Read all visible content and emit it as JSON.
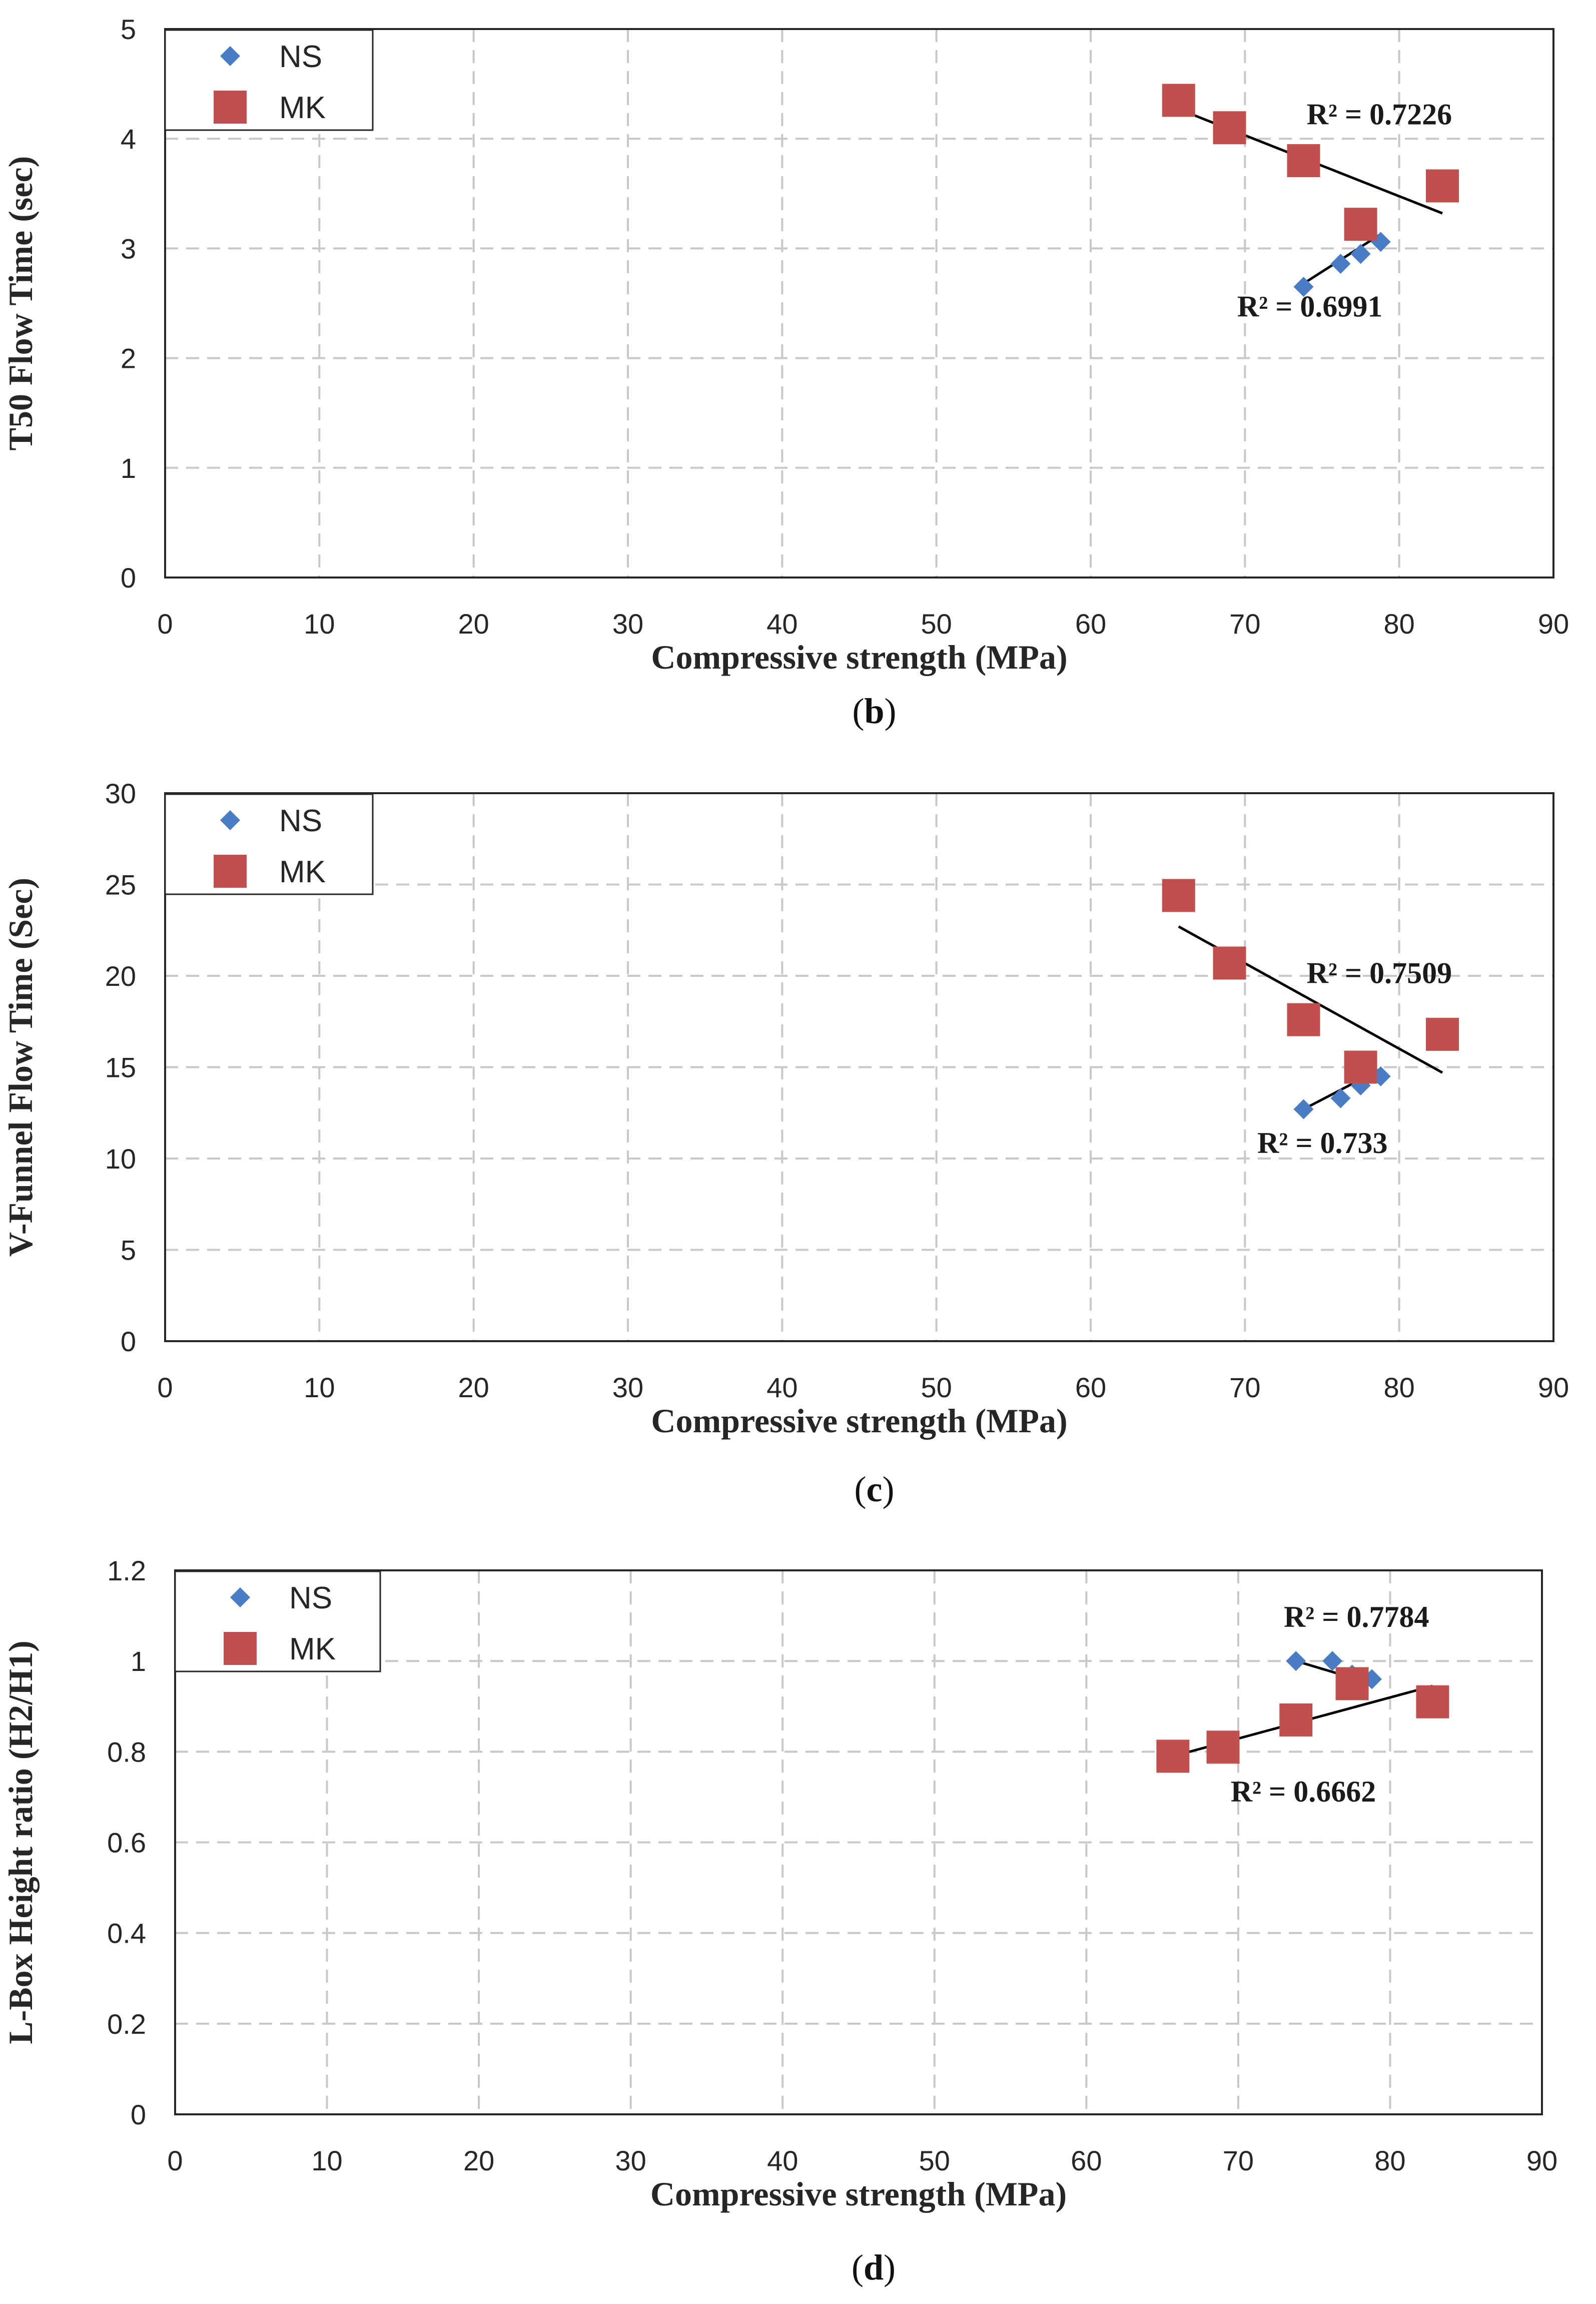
{
  "colors": {
    "ns": "#4a7cc4",
    "mk": "#c0504d",
    "grid": "#c8c8c8",
    "trend": "#000000"
  },
  "chart_data": [
    {
      "type": "scatter",
      "caption": "b",
      "xlabel": "Compressive strength (MPa)",
      "ylabel": "T50 Flow Time (sec)",
      "xlim": [
        0,
        90
      ],
      "ylim": [
        0,
        5
      ],
      "xticks": [
        0,
        10,
        20,
        30,
        40,
        50,
        60,
        70,
        80,
        90
      ],
      "yticks": [
        0,
        1,
        2,
        3,
        4,
        5
      ],
      "grid": true,
      "legend_position": "top-left",
      "series": [
        {
          "name": "NS",
          "marker": "diamond",
          "points": [
            [
              73.8,
              2.65
            ],
            [
              76.2,
              2.86
            ],
            [
              77.5,
              2.95
            ],
            [
              78.8,
              3.06
            ]
          ],
          "trendline": [
            [
              73.8,
              2.68
            ],
            [
              78.8,
              3.13
            ]
          ],
          "r2_label": "R² = 0.6991",
          "r2_at": [
            69.5,
            2.38
          ]
        },
        {
          "name": "MK",
          "marker": "square",
          "points": [
            [
              65.7,
              4.35
            ],
            [
              69.0,
              4.1
            ],
            [
              73.8,
              3.8
            ],
            [
              77.5,
              3.22
            ],
            [
              82.8,
              3.57
            ]
          ],
          "trendline": [
            [
              65.7,
              4.27
            ],
            [
              82.8,
              3.32
            ]
          ],
          "r2_label": "R² = 0.7226",
          "r2_at": [
            74.0,
            4.13
          ]
        }
      ]
    },
    {
      "type": "scatter",
      "caption": "c",
      "xlabel": "Compressive strength (MPa)",
      "ylabel": "V-Funnel Flow Time (Sec)",
      "xlim": [
        0,
        90
      ],
      "ylim": [
        0,
        30
      ],
      "xticks": [
        0,
        10,
        20,
        30,
        40,
        50,
        60,
        70,
        80,
        90
      ],
      "yticks": [
        0,
        5,
        10,
        15,
        20,
        25,
        30
      ],
      "grid": true,
      "legend_position": "top-left",
      "series": [
        {
          "name": "NS",
          "marker": "diamond",
          "points": [
            [
              73.8,
              12.7
            ],
            [
              76.2,
              13.3
            ],
            [
              77.5,
              14.0
            ],
            [
              78.8,
              14.5
            ]
          ],
          "trendline": [
            [
              73.8,
              12.7
            ],
            [
              78.8,
              14.9
            ]
          ],
          "r2_label": "R² = 0.733",
          "r2_at": [
            70.8,
            10.3
          ]
        },
        {
          "name": "MK",
          "marker": "square",
          "points": [
            [
              65.7,
              24.4
            ],
            [
              69.0,
              20.7
            ],
            [
              73.8,
              17.6
            ],
            [
              77.5,
              15.0
            ],
            [
              82.8,
              16.8
            ]
          ],
          "trendline": [
            [
              65.7,
              22.7
            ],
            [
              82.8,
              14.7
            ]
          ],
          "r2_label": "R² = 0.7509",
          "r2_at": [
            74.0,
            19.6
          ]
        }
      ]
    },
    {
      "type": "scatter",
      "caption": "d",
      "xlabel": "Compressive strength (MPa)",
      "ylabel": "L-Box Height ratio (H2/H1)",
      "xlim": [
        0,
        90
      ],
      "ylim": [
        0,
        1.2
      ],
      "xticks": [
        0,
        10,
        20,
        30,
        40,
        50,
        60,
        70,
        80,
        90
      ],
      "yticks": [
        0,
        0.2,
        0.4,
        0.6,
        0.8,
        1,
        1.2
      ],
      "grid": true,
      "legend_position": "top-left",
      "series": [
        {
          "name": "NS",
          "marker": "diamond",
          "points": [
            [
              73.8,
              1.0
            ],
            [
              76.2,
              1.0
            ],
            [
              77.5,
              0.97
            ],
            [
              78.8,
              0.96
            ]
          ],
          "trendline": [
            [
              73.8,
              1.0
            ],
            [
              78.8,
              0.95
            ]
          ],
          "r2_label": "R² = 0.7784",
          "r2_at": [
            73.0,
            1.075
          ]
        },
        {
          "name": "MK",
          "marker": "square",
          "points": [
            [
              65.7,
              0.79
            ],
            [
              69.0,
              0.81
            ],
            [
              73.8,
              0.87
            ],
            [
              77.5,
              0.95
            ],
            [
              82.8,
              0.91
            ]
          ],
          "trendline": [
            [
              65.7,
              0.79
            ],
            [
              82.8,
              0.945
            ]
          ],
          "r2_label": "R² = 0.6662",
          "r2_at": [
            69.5,
            0.69
          ]
        }
      ]
    }
  ]
}
